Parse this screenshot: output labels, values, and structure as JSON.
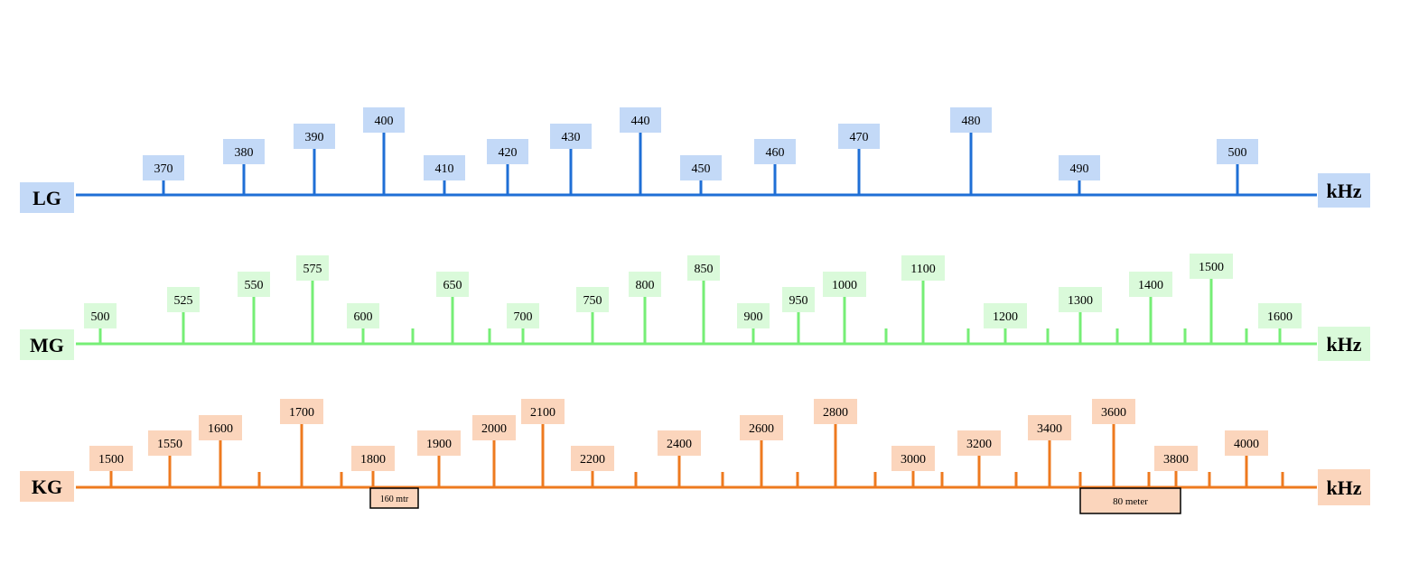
{
  "colors": {
    "lg_line": "#1f6fd6",
    "lg_box": "#c3d9f7",
    "mg_line": "#76ee76",
    "mg_box": "#dafada",
    "kg_line": "#ee7a1f",
    "kg_box": "#fbd5bc",
    "text": "#000000",
    "band_outline": "#000000",
    "background": "#ffffff"
  },
  "bands": [
    {
      "id": "lg",
      "name": "LG",
      "unit": "kHz",
      "color_key": "lg",
      "ticks": [
        {
          "label": "370"
        },
        {
          "label": "380"
        },
        {
          "label": "390"
        },
        {
          "label": "400"
        },
        {
          "label": "410"
        },
        {
          "label": "420"
        },
        {
          "label": "430"
        },
        {
          "label": "440"
        },
        {
          "label": "450"
        },
        {
          "label": "460"
        },
        {
          "label": "470"
        },
        {
          "label": "480"
        },
        {
          "label": "490"
        },
        {
          "label": "500"
        }
      ],
      "minor_ticks": [],
      "sub_bands": []
    },
    {
      "id": "mg",
      "name": "MG",
      "unit": "kHz",
      "color_key": "mg",
      "ticks": [
        {
          "label": "500"
        },
        {
          "label": "525"
        },
        {
          "label": "550"
        },
        {
          "label": "575"
        },
        {
          "label": "600"
        },
        {
          "label": "650"
        },
        {
          "label": "700"
        },
        {
          "label": "750"
        },
        {
          "label": "800"
        },
        {
          "label": "850"
        },
        {
          "label": "900"
        },
        {
          "label": "950"
        },
        {
          "label": "1000"
        },
        {
          "label": "1100"
        },
        {
          "label": "1200"
        },
        {
          "label": "1300"
        },
        {
          "label": "1400"
        },
        {
          "label": "1500"
        },
        {
          "label": "1600"
        }
      ],
      "minor_ticks": [],
      "sub_bands": []
    },
    {
      "id": "kg",
      "name": "KG",
      "unit": "kHz",
      "color_key": "kg",
      "ticks": [
        {
          "label": "1500"
        },
        {
          "label": "1550"
        },
        {
          "label": "1600"
        },
        {
          "label": "1700"
        },
        {
          "label": "1800"
        },
        {
          "label": "1900"
        },
        {
          "label": "2000"
        },
        {
          "label": "2100"
        },
        {
          "label": "2200"
        },
        {
          "label": "2400"
        },
        {
          "label": "2600"
        },
        {
          "label": "2800"
        },
        {
          "label": "3000"
        },
        {
          "label": "3200"
        },
        {
          "label": "3400"
        },
        {
          "label": "3600"
        },
        {
          "label": "3800"
        },
        {
          "label": "4000"
        }
      ],
      "minor_ticks": [],
      "sub_bands": [
        {
          "label": "160 mtr"
        },
        {
          "label": "80 meter"
        }
      ]
    }
  ]
}
